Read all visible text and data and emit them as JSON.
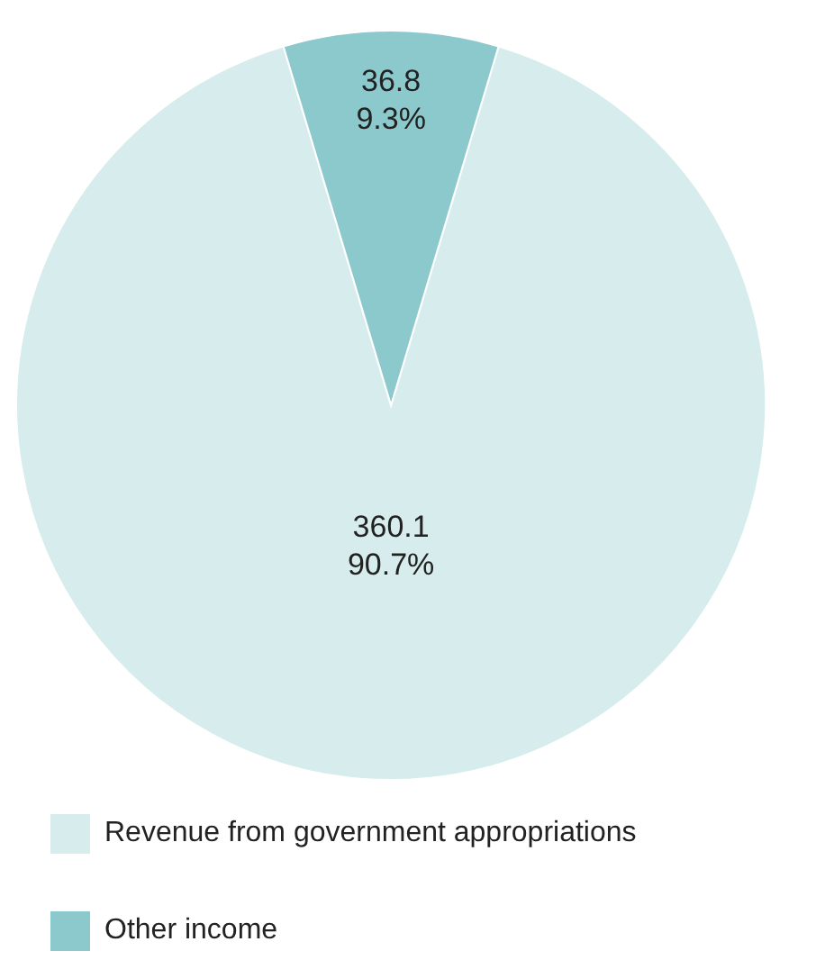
{
  "chart_data": {
    "type": "pie",
    "categories": [
      "Revenue from government appropriations",
      "Other income"
    ],
    "values": [
      360.1,
      36.8
    ],
    "colors": [
      "#d7ecec",
      "#8cc9cc"
    ],
    "value_labels": [
      "360.1\n90.7%",
      "36.8\n9.3%"
    ],
    "legend": "bottom"
  }
}
